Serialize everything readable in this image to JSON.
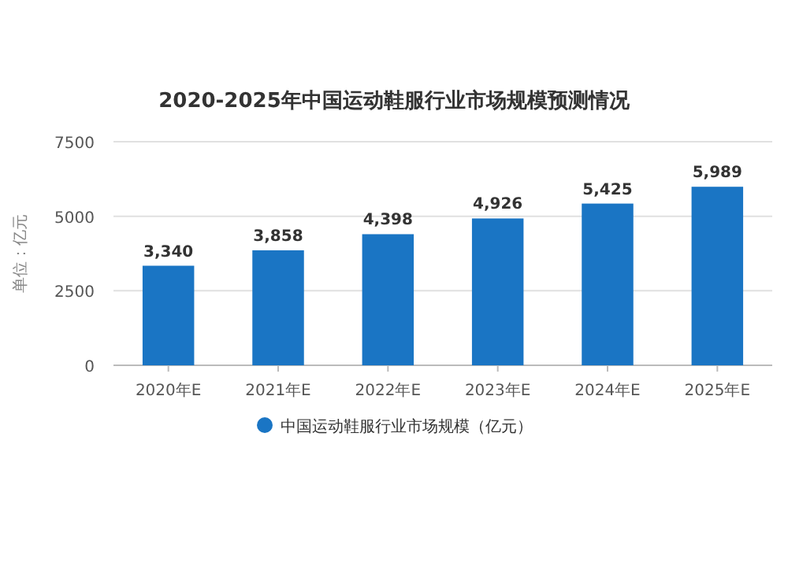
{
  "chart_data": {
    "type": "bar",
    "title": "2020-2025年中国运动鞋服行业市场规模预测情况",
    "ylabel": "单位：亿元",
    "categories": [
      "2020年E",
      "2021年E",
      "2022年E",
      "2023年E",
      "2024年E",
      "2025年E"
    ],
    "series": [
      {
        "name": "中国运动鞋服行业市场规模（亿元）",
        "color": "#1a75c4",
        "values": [
          3340,
          3858,
          4398,
          4926,
          5425,
          5989
        ],
        "value_labels": [
          "3,340",
          "3,858",
          "4,398",
          "4,926",
          "5,425",
          "5,989"
        ]
      }
    ],
    "ylim": [
      0,
      7500
    ],
    "yticks": [
      0,
      2500,
      5000,
      7500
    ],
    "grid": "y",
    "legend": "bottom",
    "marker": "circle"
  }
}
